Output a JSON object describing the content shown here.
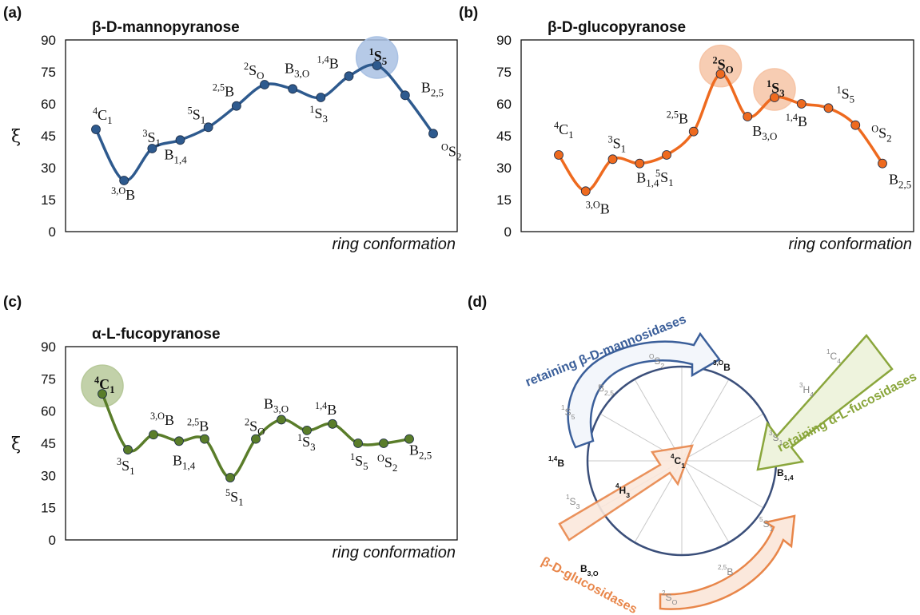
{
  "panels": {
    "a": "(a)",
    "b": "(b)",
    "c": "(c)",
    "d": "(d)"
  },
  "chart_data": [
    {
      "type": "line",
      "title": "β-D-mannopyranose",
      "ylabel": "ξ",
      "xlabel": "ring conformation",
      "ylim": [
        0,
        90
      ],
      "yticks": [
        "0",
        "15",
        "30",
        "45",
        "60",
        "75",
        "90"
      ],
      "color": "#2e5a8e",
      "highlight_color": "#a9c1e3",
      "series": [
        {
          "values": [
            48,
            24,
            39,
            43,
            49,
            59,
            69,
            67,
            63,
            73,
            78,
            64,
            46
          ],
          "labels": [
            {
              "base": "C",
              "pre": "4",
              "sub": "1"
            },
            {
              "base": "B",
              "pre": "3,O",
              "sub": ""
            },
            {
              "base": "S",
              "pre": "3",
              "sub": "1"
            },
            {
              "base": "B",
              "pre": "",
              "sub": "1,4"
            },
            {
              "base": "S",
              "pre": "5",
              "sub": "1"
            },
            {
              "base": "B",
              "pre": "2,5",
              "sub": ""
            },
            {
              "base": "S",
              "pre": "2",
              "sub": "O"
            },
            {
              "base": "B",
              "pre": "",
              "sub": "3,O"
            },
            {
              "base": "S",
              "pre": "1",
              "sub": "3"
            },
            {
              "base": "B",
              "pre": "1,4",
              "sub": ""
            },
            {
              "base": "S",
              "pre": "1",
              "sub": "5"
            },
            {
              "base": "B",
              "pre": "",
              "sub": "2,5"
            },
            {
              "base": "S",
              "pre": "O",
              "sub": "2"
            }
          ],
          "highlight_index": 10
        }
      ]
    },
    {
      "type": "line",
      "title": "β-D-glucopyranose",
      "ylabel": "",
      "xlabel": "ring conformation",
      "ylim": [
        0,
        90
      ],
      "yticks": [
        "0",
        "15",
        "30",
        "45",
        "60",
        "75",
        "90"
      ],
      "color": "#ee6a1f",
      "highlight_color": "#f6c4a6",
      "series": [
        {
          "values": [
            36,
            19,
            34,
            32,
            36,
            47,
            74,
            54,
            63,
            60,
            58,
            50,
            32
          ],
          "labels": [
            {
              "base": "C",
              "pre": "4",
              "sub": "1"
            },
            {
              "base": "B",
              "pre": "3,O",
              "sub": ""
            },
            {
              "base": "S",
              "pre": "3",
              "sub": "1"
            },
            {
              "base": "B",
              "pre": "",
              "sub": "1,4"
            },
            {
              "base": "S",
              "pre": "5",
              "sub": "1"
            },
            {
              "base": "B",
              "pre": "2,5",
              "sub": ""
            },
            {
              "base": "S",
              "pre": "2",
              "sub": "O"
            },
            {
              "base": "B",
              "pre": "",
              "sub": "3,O"
            },
            {
              "base": "S",
              "pre": "1",
              "sub": "3"
            },
            {
              "base": "B",
              "pre": "1,4",
              "sub": ""
            },
            {
              "base": "S",
              "pre": "1",
              "sub": "5"
            },
            {
              "base": "S",
              "pre": "O",
              "sub": "2"
            },
            {
              "base": "B",
              "pre": "",
              "sub": "2,5"
            }
          ],
          "highlight_indices": [
            6,
            8
          ]
        }
      ]
    },
    {
      "type": "line",
      "title": "α-L-fucopyranose",
      "ylabel": "ξ",
      "xlabel": "ring conformation",
      "ylim": [
        0,
        90
      ],
      "yticks": [
        "0",
        "15",
        "30",
        "45",
        "60",
        "75",
        "90"
      ],
      "color": "#5a7d2a",
      "highlight_color": "#b7c99a",
      "series": [
        {
          "values": [
            68,
            42,
            49,
            46,
            47,
            29,
            47,
            56,
            51,
            54,
            45,
            45,
            47
          ],
          "labels": [
            {
              "base": "C",
              "pre": "4",
              "sub": "1"
            },
            {
              "base": "S",
              "pre": "3",
              "sub": "1"
            },
            {
              "base": "B",
              "pre": "3,O",
              "sub": ""
            },
            {
              "base": "B",
              "pre": "",
              "sub": "1,4"
            },
            {
              "base": "B",
              "pre": "2,5",
              "sub": ""
            },
            {
              "base": "S",
              "pre": "5",
              "sub": "1"
            },
            {
              "base": "S",
              "pre": "2",
              "sub": "O"
            },
            {
              "base": "B",
              "pre": "",
              "sub": "3,O"
            },
            {
              "base": "S",
              "pre": "1",
              "sub": "3"
            },
            {
              "base": "B",
              "pre": "1,4",
              "sub": ""
            },
            {
              "base": "S",
              "pre": "1",
              "sub": "5"
            },
            {
              "base": "S",
              "pre": "O",
              "sub": "2"
            },
            {
              "base": "B",
              "pre": "",
              "sub": "2,5"
            }
          ],
          "highlight_index": 0
        }
      ]
    }
  ],
  "wheel": {
    "center_label": {
      "base": "C",
      "pre": "4",
      "sub": "1"
    },
    "inner_label": {
      "base": "H",
      "pre": "4",
      "sub": "3"
    },
    "rim_labels": [
      {
        "base": "B",
        "pre": "3,O",
        "sub": ""
      },
      {
        "base": "B",
        "pre": "",
        "sub": "1,4"
      },
      {
        "base": "S",
        "pre": "5",
        "sub": "1"
      },
      {
        "base": "B",
        "pre": "2,5",
        "sub": ""
      },
      {
        "base": "S",
        "pre": "2",
        "sub": "O"
      },
      {
        "base": "B",
        "pre": "",
        "sub": "3,O"
      },
      {
        "base": "S",
        "pre": "1",
        "sub": "3"
      },
      {
        "base": "B",
        "pre": "1,4",
        "sub": ""
      },
      {
        "base": "S",
        "pre": "1",
        "sub": "5"
      },
      {
        "base": "B",
        "pre": "",
        "sub": "2,5"
      },
      {
        "base": "S",
        "pre": "O",
        "sub": "2"
      }
    ],
    "fuco_labels": [
      {
        "base": "C",
        "pre": "1",
        "sub": "4"
      },
      {
        "base": "H",
        "pre": "3",
        "sub": "4"
      },
      {
        "base": "S",
        "pre": "3",
        "sub": "1"
      }
    ],
    "mannosidases": "retaining β-D-mannosidases",
    "fucosidases": "retaining α-L-fucosidases",
    "glucosidases": "β-D-glucosidases",
    "colors": {
      "mann": "#3b5f9a",
      "fuco": "#8aa63c",
      "gluco": "#e8864a"
    }
  }
}
